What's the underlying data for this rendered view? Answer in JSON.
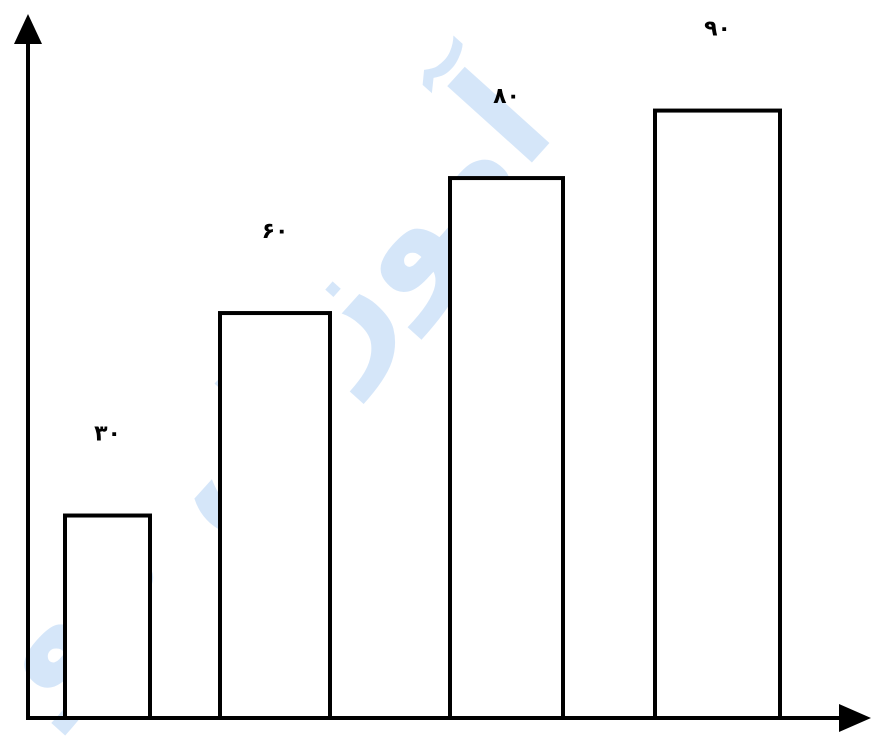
{
  "chart_data": {
    "type": "bar",
    "categories": [
      "",
      "",
      "",
      ""
    ],
    "values": [
      30,
      60,
      80,
      90
    ],
    "data_labels": [
      "۳۰",
      "۶۰",
      "۸۰",
      "۹۰"
    ],
    "title": "",
    "xlabel": "",
    "ylabel": "",
    "ylim": [
      0,
      100
    ],
    "grid": false,
    "bar_fill": "#ffffff",
    "bar_stroke": "#000000",
    "axis_arrows": true
  },
  "watermark": {
    "text": "آموزش مو",
    "color": "#1f7be0"
  }
}
